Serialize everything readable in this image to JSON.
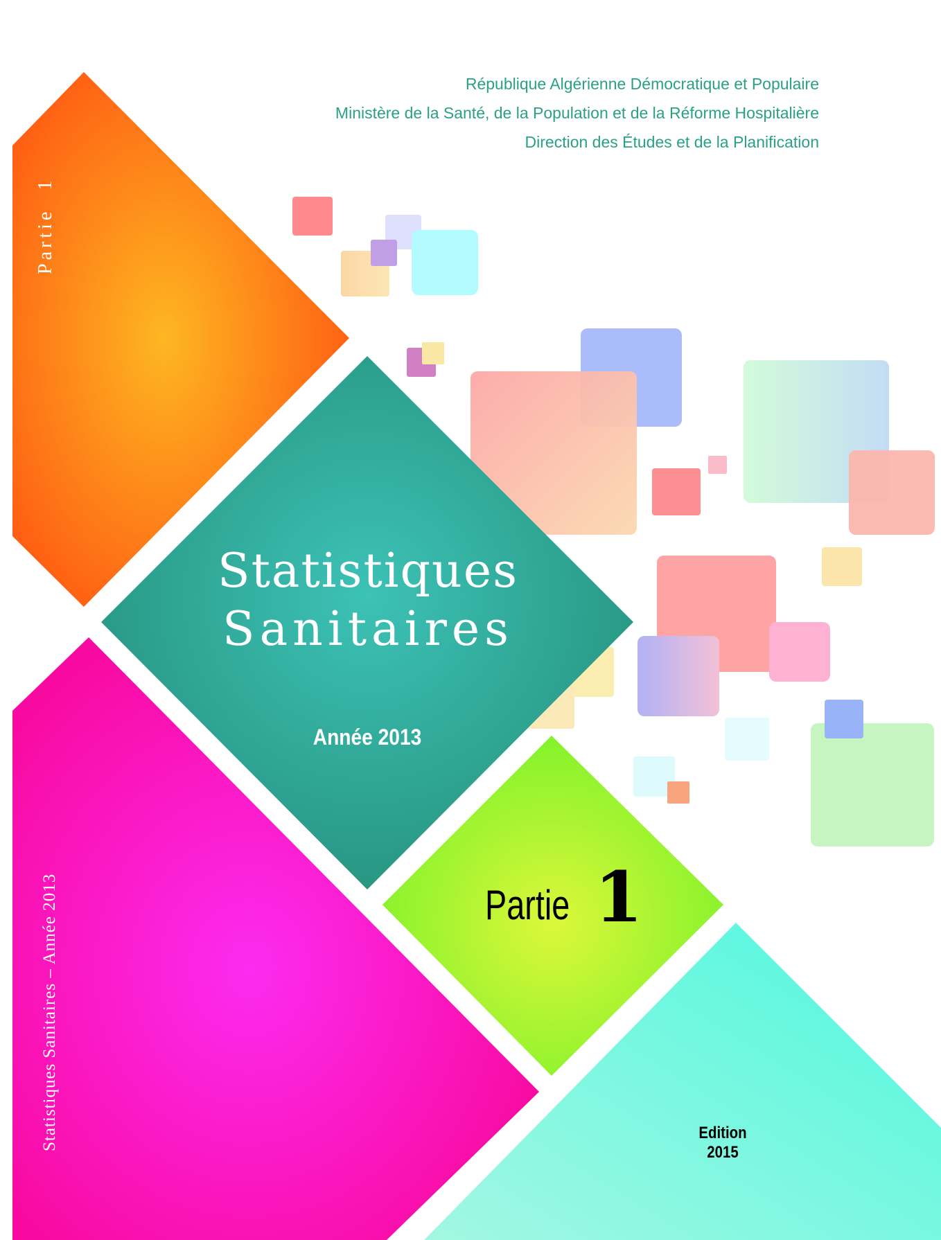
{
  "header": {
    "line1": "République Algérienne Démocratique et Populaire",
    "line2": "Ministère de la Santé, de la Population et de la Réforme Hospitalière",
    "line3": "Direction des Études et de la Planification"
  },
  "title": {
    "line1": "Statistiques",
    "line2": "Sanitaires",
    "year": "Année 2013"
  },
  "part": {
    "word": "Partie",
    "number": "1"
  },
  "edition": "Edition 2015",
  "spine": {
    "top_word": "Partie",
    "top_number": "1",
    "bottom": "Statistiques Sanitaires – Année 2013"
  },
  "colors": {
    "orange": "#ff6a12",
    "teal": "#2a9a86",
    "lime": "#aaf52c",
    "magenta": "#fb12c9",
    "aqua": "#62f5de",
    "header_green": "#2aa085"
  }
}
